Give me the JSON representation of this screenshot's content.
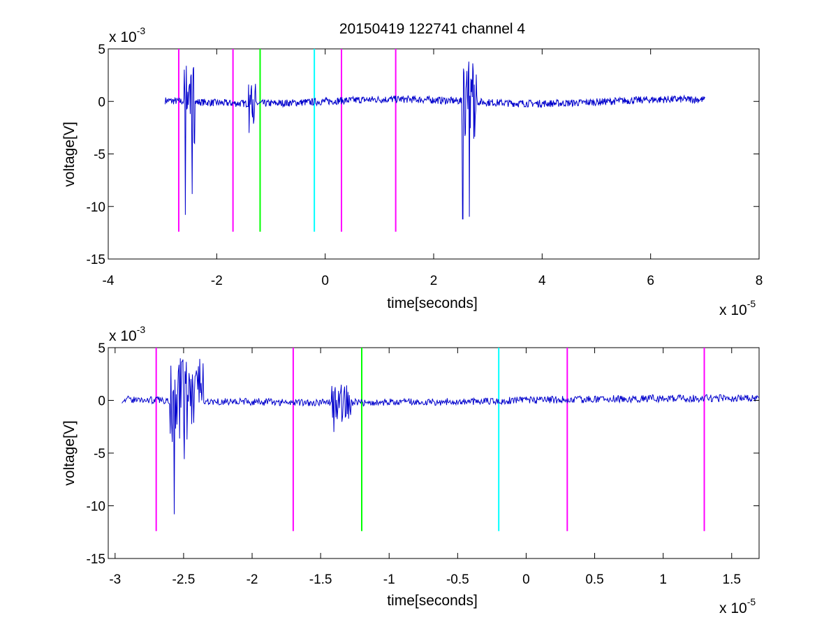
{
  "figure": {
    "title": "20150419 122741 channel 4"
  },
  "chart_data": [
    {
      "type": "line",
      "title": "20150419 122741 channel 4",
      "xlabel": "time[seconds]",
      "ylabel": "voltage[V]",
      "x_multiplier": {
        "base": "x 10",
        "exponent": "-5"
      },
      "y_multiplier": {
        "base": "x 10",
        "exponent": "-3"
      },
      "xlim": [
        -4,
        8
      ],
      "ylim": [
        -15,
        5
      ],
      "xticks": [
        -4,
        -2,
        0,
        2,
        4,
        6,
        8
      ],
      "xtick_labels": [
        "-4",
        "-2",
        "0",
        "2",
        "4",
        "6",
        "8"
      ],
      "yticks": [
        5,
        0,
        -5,
        -10,
        -15
      ],
      "ytick_labels": [
        "5",
        "0",
        "-5",
        "-10",
        "-15"
      ],
      "signal": {
        "color": "#0000cc",
        "x_range": [
          -2.95,
          7.0
        ]
      },
      "events": [
        {
          "x": -2.7,
          "color": "#ff00ff"
        },
        {
          "x": -1.7,
          "color": "#ff00ff"
        },
        {
          "x": -1.2,
          "color": "#00ff00"
        },
        {
          "x": -0.2,
          "color": "#00ffff"
        },
        {
          "x": 0.3,
          "color": "#ff00ff"
        },
        {
          "x": 1.3,
          "color": "#ff00ff"
        }
      ],
      "event_range": [
        -12.4,
        5
      ],
      "bursts": [
        {
          "x": [
            -2.6,
            -2.4
          ],
          "amp": 4.0,
          "min": -10.8
        },
        {
          "x": [
            -1.42,
            -1.28
          ],
          "amp": 1.8,
          "min": -3.0
        },
        {
          "x": [
            2.5,
            2.8
          ],
          "amp": 4.0,
          "min": -11.2
        }
      ]
    },
    {
      "type": "line",
      "title": "",
      "xlabel": "time[seconds]",
      "ylabel": "voltage[V]",
      "x_multiplier": {
        "base": "x 10",
        "exponent": "-5"
      },
      "y_multiplier": {
        "base": "x 10",
        "exponent": "-3"
      },
      "xlim": [
        -3.05,
        1.7
      ],
      "ylim": [
        -15,
        5
      ],
      "xticks": [
        -3,
        -2.5,
        -2,
        -1.5,
        -1,
        -0.5,
        0,
        0.5,
        1,
        1.5
      ],
      "xtick_labels": [
        "-3",
        "-2.5",
        "-2",
        "-1.5",
        "-1",
        "-0.5",
        "0",
        "0.5",
        "1",
        "1.5"
      ],
      "yticks": [
        5,
        0,
        -5,
        -10,
        -15
      ],
      "ytick_labels": [
        "5",
        "0",
        "-5",
        "-10",
        "-15"
      ],
      "signal": {
        "color": "#0000cc",
        "x_range": [
          -2.95,
          1.7
        ]
      },
      "events": [
        {
          "x": -2.7,
          "color": "#ff00ff"
        },
        {
          "x": -1.7,
          "color": "#ff00ff"
        },
        {
          "x": -1.2,
          "color": "#00ff00"
        },
        {
          "x": -0.2,
          "color": "#00ffff"
        },
        {
          "x": 0.3,
          "color": "#ff00ff"
        },
        {
          "x": 1.3,
          "color": "#ff00ff"
        }
      ],
      "event_range": [
        -12.4,
        5
      ],
      "bursts": [
        {
          "x": [
            -2.6,
            -2.35
          ],
          "amp": 4.0,
          "min": -10.8
        },
        {
          "x": [
            -1.42,
            -1.28
          ],
          "amp": 1.8,
          "min": -3.0
        }
      ]
    }
  ]
}
